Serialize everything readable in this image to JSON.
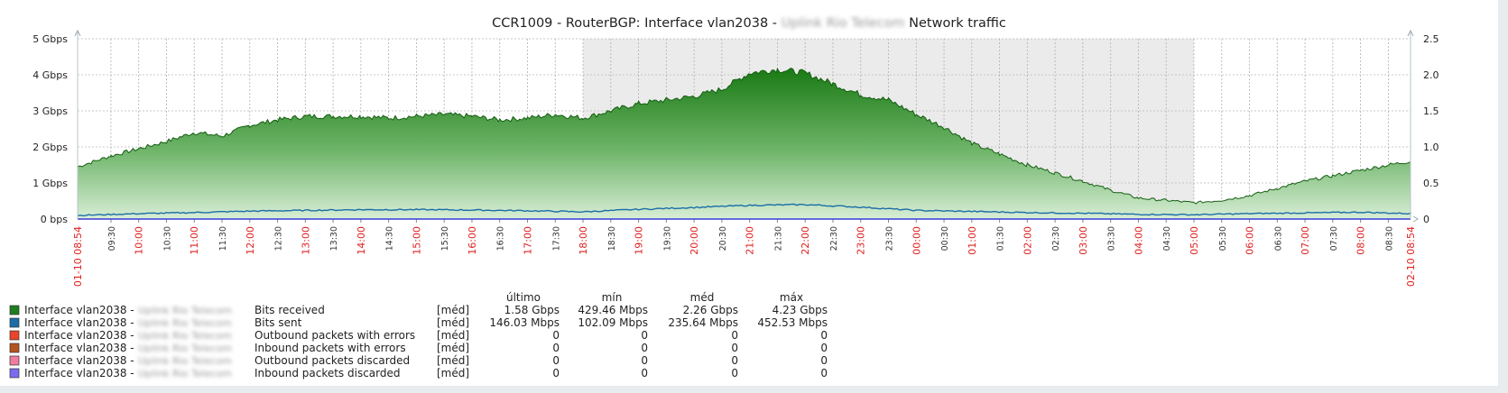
{
  "chart_data": {
    "type": "area",
    "title_prefix": "CCR1009 - RouterBGP: Interface vlan2038 -",
    "title_redacted": "Uplink Rio Telecom",
    "title_suffix": "Network traffic",
    "y_left_ticks": [
      "0 bps",
      "1 Gbps",
      "2 Gbps",
      "3 Gbps",
      "4 Gbps",
      "5 Gbps"
    ],
    "y_left_lim": [
      0,
      5
    ],
    "y_left_unit": "Gbps",
    "y_right_ticks": [
      "0",
      "0.5",
      "1.0",
      "1.5",
      "2.0",
      "2.5"
    ],
    "y_right_lim": [
      0,
      2.5
    ],
    "x_start_label": "01-10 08:54",
    "x_end_label": "02-10 08:54",
    "x_hours": [
      {
        "label": "09:30",
        "h": 9.5,
        "red": false
      },
      {
        "label": "10:00",
        "h": 10,
        "red": true
      },
      {
        "label": "10:30",
        "h": 10.5,
        "red": false
      },
      {
        "label": "11:00",
        "h": 11,
        "red": true
      },
      {
        "label": "11:30",
        "h": 11.5,
        "red": false
      },
      {
        "label": "12:00",
        "h": 12,
        "red": true
      },
      {
        "label": "12:30",
        "h": 12.5,
        "red": false
      },
      {
        "label": "13:00",
        "h": 13,
        "red": true
      },
      {
        "label": "13:30",
        "h": 13.5,
        "red": false
      },
      {
        "label": "14:00",
        "h": 14,
        "red": true
      },
      {
        "label": "14:30",
        "h": 14.5,
        "red": false
      },
      {
        "label": "15:00",
        "h": 15,
        "red": true
      },
      {
        "label": "15:30",
        "h": 15.5,
        "red": false
      },
      {
        "label": "16:00",
        "h": 16,
        "red": true
      },
      {
        "label": "16:30",
        "h": 16.5,
        "red": false
      },
      {
        "label": "17:00",
        "h": 17,
        "red": true
      },
      {
        "label": "17:30",
        "h": 17.5,
        "red": false
      },
      {
        "label": "18:00",
        "h": 18,
        "red": true
      },
      {
        "label": "18:30",
        "h": 18.5,
        "red": false
      },
      {
        "label": "19:00",
        "h": 19,
        "red": true
      },
      {
        "label": "19:30",
        "h": 19.5,
        "red": false
      },
      {
        "label": "20:00",
        "h": 20,
        "red": true
      },
      {
        "label": "20:30",
        "h": 20.5,
        "red": false
      },
      {
        "label": "21:00",
        "h": 21,
        "red": true
      },
      {
        "label": "21:30",
        "h": 21.5,
        "red": false
      },
      {
        "label": "22:00",
        "h": 22,
        "red": true
      },
      {
        "label": "22:30",
        "h": 22.5,
        "red": false
      },
      {
        "label": "23:00",
        "h": 23,
        "red": true
      },
      {
        "label": "23:30",
        "h": 23.5,
        "red": false
      },
      {
        "label": "00:00",
        "h": 24,
        "red": true
      },
      {
        "label": "00:30",
        "h": 24.5,
        "red": false
      },
      {
        "label": "01:00",
        "h": 25,
        "red": true
      },
      {
        "label": "01:30",
        "h": 25.5,
        "red": false
      },
      {
        "label": "02:00",
        "h": 26,
        "red": true
      },
      {
        "label": "02:30",
        "h": 26.5,
        "red": false
      },
      {
        "label": "03:00",
        "h": 27,
        "red": true
      },
      {
        "label": "03:30",
        "h": 27.5,
        "red": false
      },
      {
        "label": "04:00",
        "h": 28,
        "red": true
      },
      {
        "label": "04:30",
        "h": 28.5,
        "red": false
      },
      {
        "label": "05:00",
        "h": 29,
        "red": true
      },
      {
        "label": "05:30",
        "h": 29.5,
        "red": false
      },
      {
        "label": "06:00",
        "h": 30,
        "red": true
      },
      {
        "label": "06:30",
        "h": 30.5,
        "red": false
      },
      {
        "label": "07:00",
        "h": 31,
        "red": true
      },
      {
        "label": "07:30",
        "h": 31.5,
        "red": false
      },
      {
        "label": "08:00",
        "h": 32,
        "red": true
      },
      {
        "label": "08:30",
        "h": 32.5,
        "red": false
      }
    ],
    "x_lim_hours": [
      8.9,
      32.9
    ],
    "shaded_period_hours": [
      18,
      29
    ],
    "series": [
      {
        "name": "Bits received",
        "color": "#1e7d1e",
        "style": "filled-area",
        "unit": "Gbps",
        "x": [
          8.9,
          9.5,
          10,
          10.5,
          11,
          11.5,
          12,
          12.5,
          13,
          13.5,
          14,
          14.5,
          15,
          15.5,
          16,
          16.5,
          17,
          17.5,
          18,
          18.5,
          19,
          19.5,
          20,
          20.5,
          21,
          21.5,
          22,
          22.5,
          23,
          23.5,
          24,
          24.5,
          25,
          25.5,
          26,
          26.5,
          27,
          27.5,
          28,
          28.5,
          29,
          29.5,
          30,
          30.5,
          31,
          31.5,
          32,
          32.5,
          32.9
        ],
        "y": [
          1.45,
          1.75,
          1.95,
          2.15,
          2.4,
          2.3,
          2.6,
          2.75,
          2.85,
          2.85,
          2.85,
          2.8,
          2.85,
          2.9,
          2.85,
          2.75,
          2.8,
          2.9,
          2.8,
          3.0,
          3.2,
          3.3,
          3.4,
          3.6,
          4.05,
          4.15,
          4.05,
          3.75,
          3.45,
          3.3,
          2.9,
          2.55,
          2.1,
          1.8,
          1.5,
          1.28,
          1.05,
          0.8,
          0.58,
          0.52,
          0.45,
          0.52,
          0.65,
          0.85,
          1.05,
          1.2,
          1.35,
          1.5,
          1.6
        ]
      },
      {
        "name": "Bits sent",
        "color": "#1a6ea8",
        "style": "line",
        "unit": "Gbps",
        "x": [
          8.9,
          10,
          11,
          12,
          13,
          14,
          15,
          16,
          17,
          18,
          19,
          20,
          21,
          22,
          23,
          24,
          25,
          26,
          27,
          28,
          29,
          30,
          31,
          32,
          32.9
        ],
        "y": [
          0.1,
          0.15,
          0.18,
          0.22,
          0.24,
          0.26,
          0.26,
          0.25,
          0.23,
          0.2,
          0.27,
          0.32,
          0.38,
          0.4,
          0.33,
          0.24,
          0.21,
          0.18,
          0.16,
          0.13,
          0.12,
          0.15,
          0.17,
          0.19,
          0.15
        ]
      }
    ]
  },
  "legend": {
    "headers": {
      "last": "último",
      "min": "mín",
      "avg": "méd",
      "max": "máx"
    },
    "rows": [
      {
        "prefix": "Interface vlan2038 -",
        "redacted": "Uplink Rio Telecom",
        "metric": "Bits received",
        "func": "[méd]",
        "last": "1.58 Gbps",
        "min": "429.46 Mbps",
        "avg": "2.26 Gbps",
        "max": "4.23 Gbps",
        "color": "#1e7d1e"
      },
      {
        "prefix": "Interface vlan2038 -",
        "redacted": "Uplink Rio Telecom",
        "metric": "Bits sent",
        "func": "[méd]",
        "last": "146.03 Mbps",
        "min": "102.09 Mbps",
        "avg": "235.64 Mbps",
        "max": "452.53 Mbps",
        "color": "#1a6ea8"
      },
      {
        "prefix": "Interface vlan2038 -",
        "redacted": "Uplink Rio Telecom",
        "metric": "Outbound packets with errors",
        "func": "[méd]",
        "last": "0",
        "min": "0",
        "avg": "0",
        "max": "0",
        "color": "#e8452a"
      },
      {
        "prefix": "Interface vlan2038 -",
        "redacted": "Uplink Rio Telecom",
        "metric": "Inbound packets with errors",
        "func": "[méd]",
        "last": "0",
        "min": "0",
        "avg": "0",
        "max": "0",
        "color": "#b5541f"
      },
      {
        "prefix": "Interface vlan2038 -",
        "redacted": "Uplink Rio Telecom",
        "metric": "Outbound packets discarded",
        "func": "[méd]",
        "last": "0",
        "min": "0",
        "avg": "0",
        "max": "0",
        "color": "#f07ca0"
      },
      {
        "prefix": "Interface vlan2038 -",
        "redacted": "Uplink Rio Telecom",
        "metric": "Inbound packets discarded",
        "func": "[méd]",
        "last": "0",
        "min": "0",
        "avg": "0",
        "max": "0",
        "color": "#7b6cf0"
      }
    ]
  }
}
